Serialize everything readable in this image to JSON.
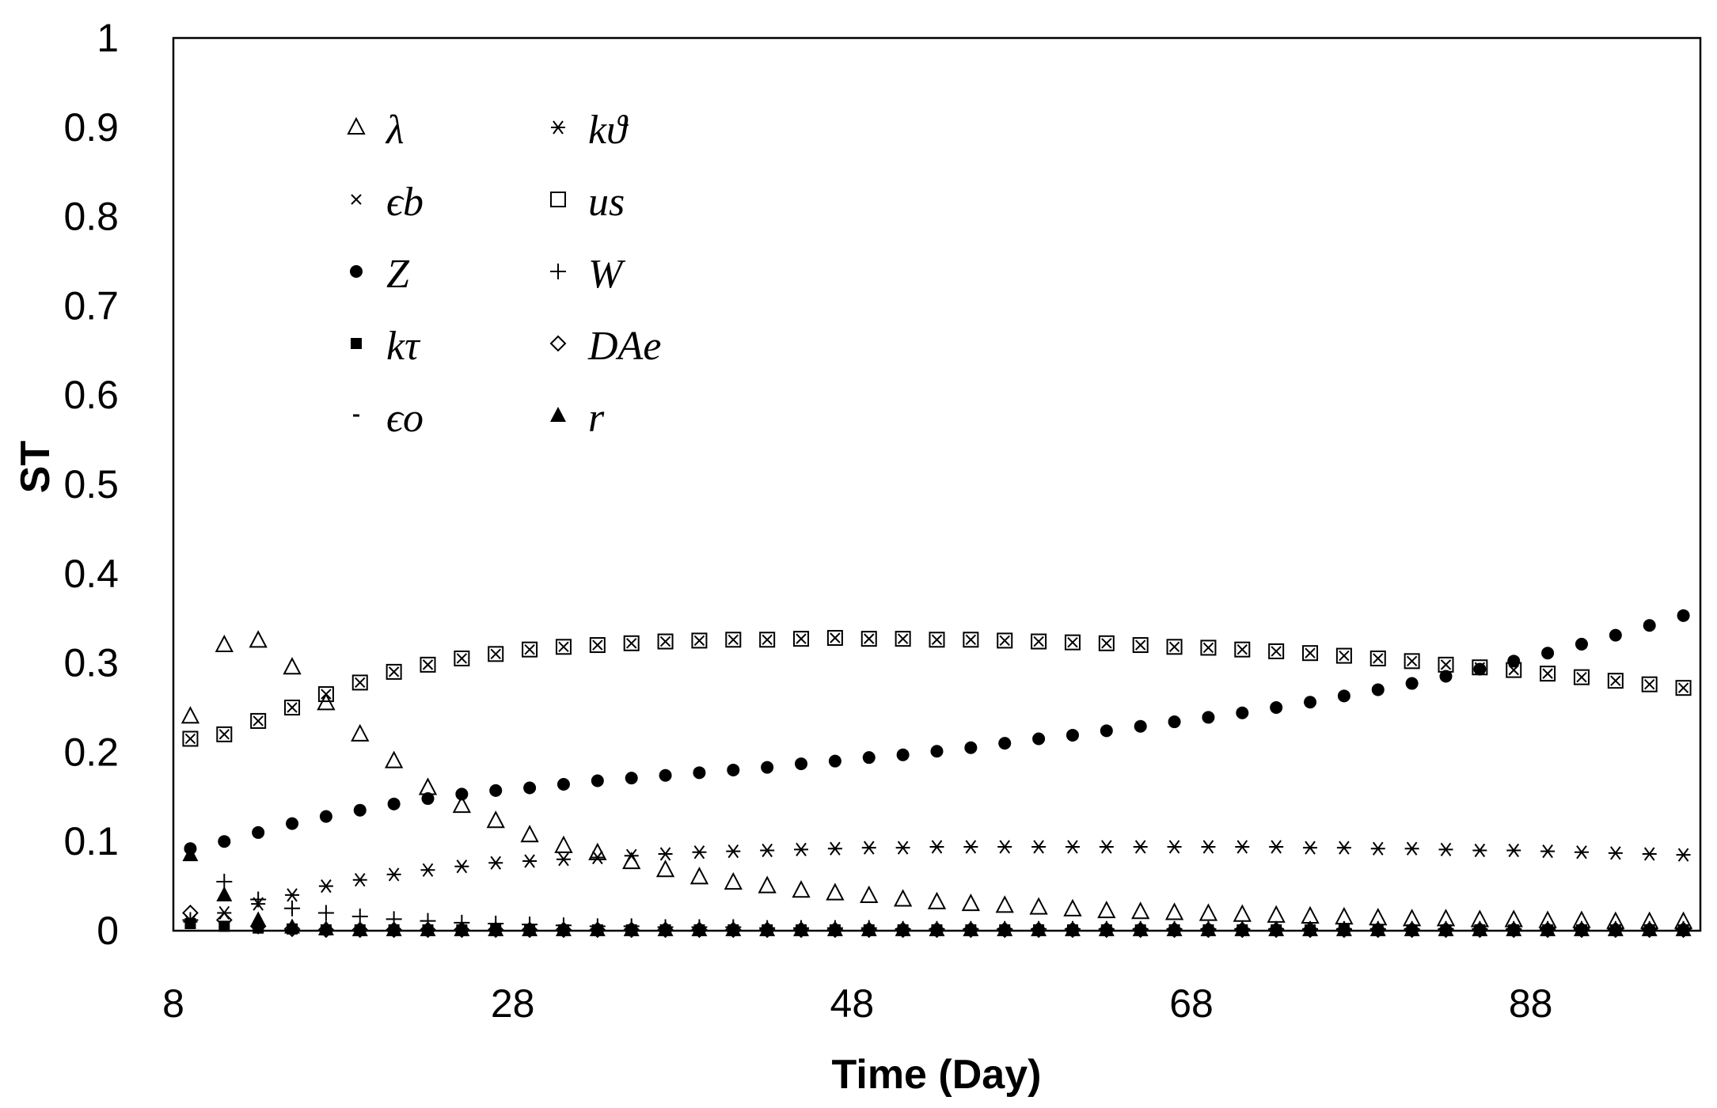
{
  "chart_data": {
    "type": "scatter",
    "title": "",
    "xlabel": "Time (Day)",
    "ylabel": "ST",
    "xlim": [
      8,
      98
    ],
    "ylim": [
      0,
      1
    ],
    "x_ticks": [
      8,
      28,
      48,
      68,
      88
    ],
    "x_tick_labels": [
      "8",
      "28",
      "48",
      "68",
      "88"
    ],
    "y_ticks": [
      0,
      0.1,
      0.2,
      0.3,
      0.4,
      0.5,
      0.6,
      0.7,
      0.8,
      0.9,
      1
    ],
    "y_tick_labels": [
      "0",
      "0.1",
      "0.2",
      "0.3",
      "0.4",
      "0.5",
      "0.6",
      "0.7",
      "0.8",
      "0.9",
      "1"
    ],
    "grid": false,
    "legend_position": "top-left",
    "x": [
      9,
      11,
      13,
      15,
      17,
      19,
      21,
      23,
      25,
      27,
      29,
      31,
      33,
      35,
      37,
      39,
      41,
      43,
      45,
      47,
      49,
      51,
      53,
      55,
      57,
      59,
      61,
      63,
      65,
      67,
      69,
      71,
      73,
      75,
      77,
      79,
      81,
      83,
      85,
      87,
      89,
      91,
      93,
      95,
      97
    ],
    "series": [
      {
        "name": "λ",
        "marker": "triangle-open",
        "values": [
          0.24,
          0.32,
          0.325,
          0.295,
          0.255,
          0.22,
          0.19,
          0.16,
          0.14,
          0.123,
          0.107,
          0.095,
          0.087,
          0.077,
          0.068,
          0.06,
          0.054,
          0.05,
          0.045,
          0.042,
          0.039,
          0.035,
          0.032,
          0.03,
          0.028,
          0.026,
          0.024,
          0.022,
          0.021,
          0.02,
          0.019,
          0.018,
          0.017,
          0.016,
          0.015,
          0.014,
          0.013,
          0.013,
          0.012,
          0.012,
          0.011,
          0.011,
          0.01,
          0.01,
          0.01
        ]
      },
      {
        "name": "kϑ",
        "marker": "asterisk",
        "values": [
          0.01,
          0.02,
          0.03,
          0.04,
          0.05,
          0.057,
          0.063,
          0.068,
          0.072,
          0.076,
          0.078,
          0.08,
          0.082,
          0.084,
          0.086,
          0.088,
          0.089,
          0.09,
          0.091,
          0.092,
          0.093,
          0.093,
          0.094,
          0.094,
          0.094,
          0.094,
          0.094,
          0.094,
          0.094,
          0.094,
          0.094,
          0.094,
          0.094,
          0.093,
          0.093,
          0.092,
          0.092,
          0.091,
          0.09,
          0.09,
          0.089,
          0.088,
          0.087,
          0.086,
          0.085
        ]
      },
      {
        "name": "ϵb",
        "marker": "x",
        "values": [
          0.215,
          0.22,
          0.235,
          0.25,
          0.265,
          0.278,
          0.29,
          0.298,
          0.305,
          0.31,
          0.315,
          0.318,
          0.32,
          0.322,
          0.324,
          0.325,
          0.326,
          0.326,
          0.327,
          0.328,
          0.327,
          0.327,
          0.326,
          0.326,
          0.325,
          0.324,
          0.323,
          0.322,
          0.32,
          0.318,
          0.317,
          0.315,
          0.313,
          0.311,
          0.308,
          0.305,
          0.302,
          0.298,
          0.295,
          0.292,
          0.288,
          0.284,
          0.28,
          0.276,
          0.272
        ]
      },
      {
        "name": "us",
        "marker": "square-open",
        "values": [
          0.215,
          0.22,
          0.235,
          0.25,
          0.265,
          0.278,
          0.29,
          0.298,
          0.305,
          0.31,
          0.315,
          0.318,
          0.32,
          0.322,
          0.324,
          0.325,
          0.326,
          0.326,
          0.327,
          0.328,
          0.327,
          0.327,
          0.326,
          0.326,
          0.325,
          0.324,
          0.323,
          0.322,
          0.32,
          0.318,
          0.317,
          0.315,
          0.313,
          0.311,
          0.308,
          0.305,
          0.302,
          0.298,
          0.295,
          0.292,
          0.288,
          0.284,
          0.28,
          0.276,
          0.272
        ]
      },
      {
        "name": "Z",
        "marker": "circle-filled",
        "values": [
          0.092,
          0.1,
          0.11,
          0.12,
          0.128,
          0.135,
          0.142,
          0.148,
          0.153,
          0.157,
          0.16,
          0.164,
          0.168,
          0.171,
          0.174,
          0.177,
          0.18,
          0.183,
          0.187,
          0.19,
          0.194,
          0.197,
          0.201,
          0.205,
          0.21,
          0.215,
          0.219,
          0.224,
          0.229,
          0.234,
          0.239,
          0.244,
          0.25,
          0.256,
          0.263,
          0.27,
          0.277,
          0.285,
          0.293,
          0.302,
          0.311,
          0.321,
          0.331,
          0.342,
          0.353
        ]
      },
      {
        "name": "W",
        "marker": "plus",
        "values": [
          0.012,
          0.055,
          0.035,
          0.025,
          0.02,
          0.016,
          0.013,
          0.011,
          0.009,
          0.008,
          0.007,
          0.006,
          0.005,
          0.005,
          0.004,
          0.004,
          0.004,
          0.003,
          0.003,
          0.003,
          0.003,
          0.002,
          0.002,
          0.002,
          0.002,
          0.002,
          0.002,
          0.002,
          0.002,
          0.002,
          0.002,
          0.002,
          0.002,
          0.002,
          0.002,
          0.002,
          0.002,
          0.002,
          0.002,
          0.002,
          0.002,
          0.002,
          0.002,
          0.002,
          0.002
        ]
      },
      {
        "name": "kτ",
        "marker": "square-filled",
        "values": [
          0.008,
          0.005,
          0.003,
          0.002,
          0.001,
          0.001,
          0.001,
          0.001,
          0.001,
          0.001,
          0.001,
          0.001,
          0.001,
          0.001,
          0.001,
          0.001,
          0.001,
          0.001,
          0.001,
          0.001,
          0.001,
          0.001,
          0.001,
          0.001,
          0.001,
          0.001,
          0.001,
          0.001,
          0.001,
          0.001,
          0.001,
          0.001,
          0.001,
          0.001,
          0.001,
          0.001,
          0.001,
          0.001,
          0.001,
          0.001,
          0.001,
          0.001,
          0.001,
          0.001,
          0.001
        ]
      },
      {
        "name": "DAe",
        "marker": "diamond-open",
        "values": [
          0.02,
          0.012,
          0.005,
          0.002,
          0.001,
          0.001,
          0.001,
          0.001,
          0.001,
          0.001,
          0.001,
          0.001,
          0.001,
          0.001,
          0.001,
          0.001,
          0.001,
          0.001,
          0.001,
          0.001,
          0.001,
          0.001,
          0.001,
          0.001,
          0.001,
          0.001,
          0.001,
          0.001,
          0.001,
          0.001,
          0.001,
          0.001,
          0.001,
          0.001,
          0.001,
          0.001,
          0.001,
          0.001,
          0.001,
          0.001,
          0.001,
          0.001,
          0.001,
          0.001,
          0.001
        ]
      },
      {
        "name": "ϵo",
        "marker": "dash",
        "values": [
          0.005,
          0.003,
          0.002,
          0.001,
          0.001,
          0.001,
          0.001,
          0.001,
          0.001,
          0.001,
          0.001,
          0.001,
          0.001,
          0.001,
          0.001,
          0.001,
          0.001,
          0.001,
          0.001,
          0.001,
          0.001,
          0.001,
          0.001,
          0.001,
          0.001,
          0.001,
          0.001,
          0.001,
          0.001,
          0.001,
          0.001,
          0.001,
          0.001,
          0.001,
          0.001,
          0.001,
          0.001,
          0.001,
          0.001,
          0.001,
          0.001,
          0.001,
          0.001,
          0.001,
          0.001
        ]
      },
      {
        "name": "r",
        "marker": "triangle-filled",
        "values": [
          0.085,
          0.04,
          0.012,
          0.004,
          0.002,
          0.001,
          0.001,
          0.001,
          0.001,
          0.001,
          0.001,
          0.001,
          0.001,
          0.001,
          0.001,
          0.001,
          0.001,
          0.001,
          0.001,
          0.001,
          0.001,
          0.001,
          0.001,
          0.001,
          0.001,
          0.001,
          0.001,
          0.001,
          0.001,
          0.001,
          0.001,
          0.001,
          0.001,
          0.001,
          0.001,
          0.001,
          0.001,
          0.001,
          0.001,
          0.001,
          0.001,
          0.001,
          0.001,
          0.001,
          0.001
        ]
      }
    ],
    "legend": {
      "columns": [
        [
          "λ",
          "ϵb",
          "Z",
          "kτ",
          "ϵo"
        ],
        [
          "kϑ",
          "us",
          "W",
          "DAe",
          "r"
        ]
      ]
    }
  }
}
